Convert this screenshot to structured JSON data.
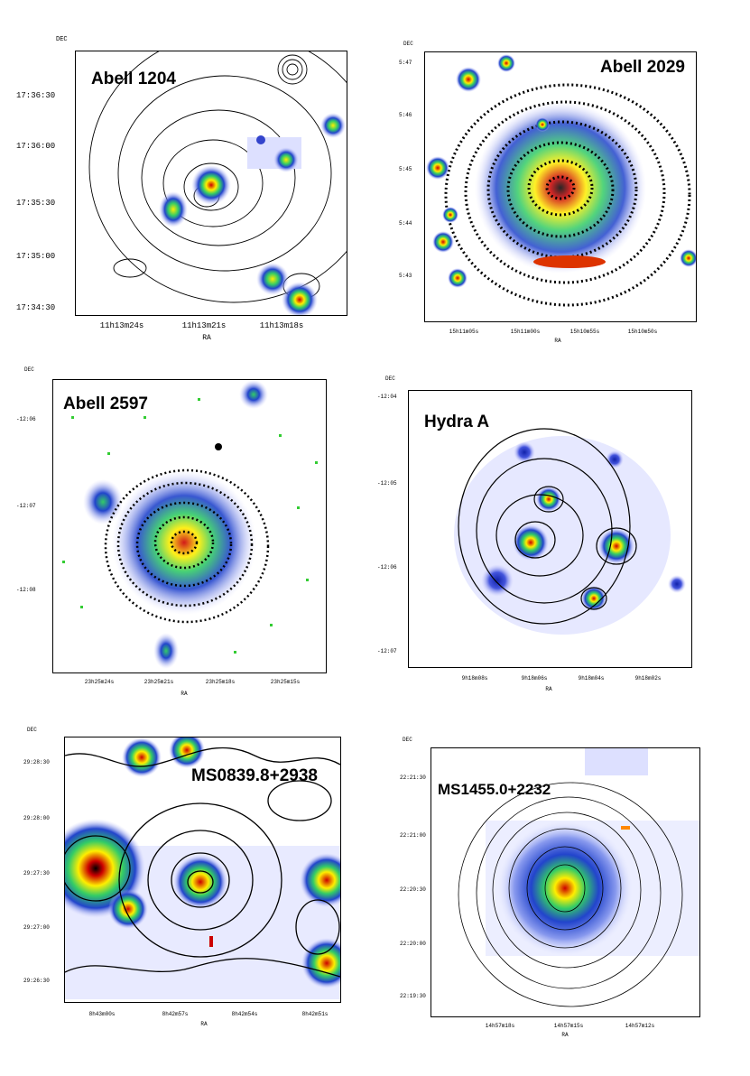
{
  "figure": {
    "panels": [
      {
        "title": "Abell 1204",
        "dec_label": "DEC",
        "ra_label": "RA",
        "y_ticks": [
          "17:36:30",
          "17:36:00",
          "17:35:30",
          "17:35:00",
          "17:34:30"
        ],
        "x_ticks": [
          "11h13m24s",
          "11h13m21s",
          "11h13m18s"
        ]
      },
      {
        "title": "Abell 2029",
        "dec_label": "DEC",
        "ra_label": "RA",
        "y_ticks": [
          "5:47",
          "5:46",
          "5:45",
          "5:44",
          "5:43"
        ],
        "x_ticks": [
          "15h11m05s",
          "15h11m00s",
          "15h10m55s",
          "15h10m50s"
        ]
      },
      {
        "title": "Abell 2597",
        "dec_label": "DEC",
        "ra_label": "RA",
        "y_ticks": [
          "-12:06",
          "-12:07",
          "-12:08"
        ],
        "x_ticks": [
          "23h25m24s",
          "23h25m21s",
          "23h25m18s",
          "23h25m15s"
        ]
      },
      {
        "title": "Hydra A",
        "dec_label": "DEC",
        "ra_label": "RA",
        "y_ticks": [
          "-12:04",
          "-12:05",
          "-12:06",
          "-12:07"
        ],
        "x_ticks": [
          "9h18m08s",
          "9h18m06s",
          "9h18m04s",
          "9h18m02s"
        ]
      },
      {
        "title": "MS0839.8+2938",
        "dec_label": "DEC",
        "ra_label": "RA",
        "y_ticks": [
          "29:28:30",
          "29:28:00",
          "29:27:30",
          "29:27:00",
          "29:26:30"
        ],
        "x_ticks": [
          "8h43m00s",
          "8h42m57s",
          "8h42m54s",
          "8h42m51s"
        ]
      },
      {
        "title": "MS1455.0+2232",
        "dec_label": "DEC",
        "ra_label": "RA",
        "y_ticks": [
          "22:21:30",
          "22:21:00",
          "22:20:30",
          "22:20:00",
          "22:19:30"
        ],
        "x_ticks": [
          "14h57m18s",
          "14h57m15s",
          "14h57m12s"
        ]
      }
    ]
  }
}
